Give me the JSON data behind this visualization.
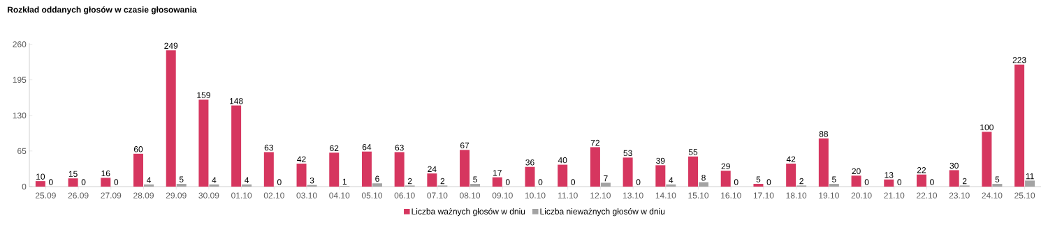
{
  "chart_data": {
    "type": "bar",
    "title": "Rozkład oddanych głosów w czasie głosowania",
    "categories": [
      "25.09",
      "26.09",
      "27.09",
      "28.09",
      "29.09",
      "30.09",
      "01.10",
      "02.10",
      "03.10",
      "04.10",
      "05.10",
      "06.10",
      "07.10",
      "08.10",
      "09.10",
      "10.10",
      "11.10",
      "12.10",
      "13.10",
      "14.10",
      "15.10",
      "16.10",
      "17.10",
      "18.10",
      "19.10",
      "20.10",
      "21.10",
      "22.10",
      "23.10",
      "24.10",
      "25.10"
    ],
    "series": [
      {
        "name": "Liczba ważnych głosów w dniu",
        "color": "#d6365f",
        "values": [
          10,
          15,
          16,
          60,
          249,
          159,
          148,
          63,
          42,
          62,
          64,
          63,
          24,
          67,
          17,
          36,
          40,
          72,
          53,
          39,
          55,
          29,
          5,
          42,
          88,
          20,
          13,
          22,
          30,
          100,
          223
        ]
      },
      {
        "name": "Liczba nieważnych głosów w dniu",
        "color": "#a3a3a3",
        "values": [
          0,
          0,
          0,
          4,
          5,
          4,
          4,
          0,
          3,
          1,
          6,
          2,
          2,
          5,
          0,
          0,
          0,
          7,
          0,
          4,
          8,
          0,
          0,
          2,
          5,
          0,
          0,
          0,
          2,
          5,
          11
        ]
      }
    ],
    "ylim": [
      0,
      262
    ],
    "yticks": [
      0,
      65,
      130,
      195,
      260
    ],
    "data_labels": true,
    "grid": false,
    "legend": "bottom"
  }
}
